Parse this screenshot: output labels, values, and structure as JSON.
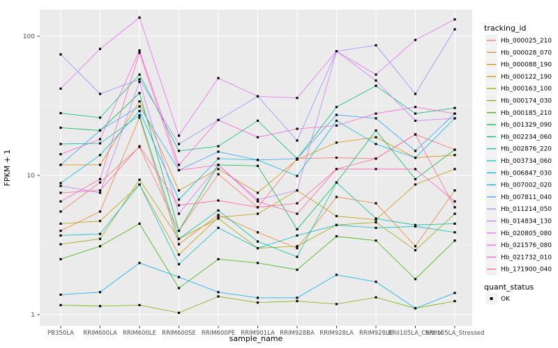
{
  "chart": {
    "xlabel": "sample_name",
    "ylabel": "FPKM + 1",
    "legend_title": "tracking_id",
    "quant_legend": {
      "title": "quant_status",
      "items": [
        {
          "label": "OK",
          "marker": "black-square"
        }
      ]
    },
    "colors": {
      "panel_bg": "#EBEBEB",
      "grid": "#FFFFFF",
      "axis_text": "#4D4D4D",
      "tick_mark": "#333333",
      "point": "#000000",
      "legend_key_bg": "#F2F2F2"
    }
  },
  "chart_data": {
    "type": "line",
    "title": "",
    "xlabel": "sample_name",
    "ylabel": "FPKM + 1",
    "y_scale": "log10",
    "ylim": [
      0.83,
      155
    ],
    "y_ticks": [
      1,
      10,
      100
    ],
    "y_minor_ticks": [
      3.162,
      31.623
    ],
    "grid": "on",
    "legend_position": "right",
    "point_marker": "filled-square",
    "quant_status_all": "OK",
    "x_categories": [
      "PB350LA",
      "RRIM600LA",
      "RRIM600LE",
      "RRIM600SE",
      "RRIM600PE",
      "RRIM901LA",
      "RRIM928BA",
      "RRIM928LA",
      "RRIM928LE",
      "RRII105LA_Control",
      "RRII105LA_Stressed"
    ],
    "series": [
      {
        "name": "Hb_000025_210",
        "color": "#F8766D",
        "values": [
          5.5,
          8.9,
          16.0,
          4.0,
          10.2,
          5.9,
          13.2,
          13.4,
          13.2,
          19.7,
          15.3
        ]
      },
      {
        "name": "Hb_000028_070",
        "color": "#EA8331",
        "values": [
          4.0,
          5.5,
          26.0,
          3.2,
          5.2,
          3.9,
          3.0,
          7.0,
          6.3,
          3.1,
          7.8
        ]
      },
      {
        "name": "Hb_000088_190",
        "color": "#D89000",
        "values": [
          11.9,
          11.9,
          34.0,
          7.8,
          11.1,
          7.5,
          13.0,
          17.2,
          18.8,
          13.4,
          14.0
        ]
      },
      {
        "name": "Hb_000122_190",
        "color": "#C09B00",
        "values": [
          4.5,
          4.7,
          8.6,
          2.7,
          5.0,
          5.3,
          7.8,
          5.1,
          4.8,
          8.6,
          11.1
        ]
      },
      {
        "name": "Hb_000163_100",
        "color": "#A3A500",
        "values": [
          3.2,
          3.5,
          9.3,
          3.5,
          4.9,
          3.0,
          3.1,
          4.4,
          4.6,
          2.9,
          5.3
        ]
      },
      {
        "name": "Hb_000174_030",
        "color": "#7CAE00",
        "values": [
          1.17,
          1.15,
          1.17,
          1.03,
          1.35,
          1.22,
          1.25,
          1.19,
          1.33,
          1.11,
          1.25
        ]
      },
      {
        "name": "Hb_000185_210",
        "color": "#39B600",
        "values": [
          2.5,
          3.1,
          4.5,
          1.55,
          2.5,
          2.35,
          2.1,
          3.65,
          3.4,
          1.8,
          3.4
        ]
      },
      {
        "name": "Hb_001329_090",
        "color": "#00BB4E",
        "values": [
          22.0,
          21.0,
          39.0,
          4.0,
          11.9,
          11.7,
          4.1,
          8.9,
          21.0,
          9.4,
          15.3
        ]
      },
      {
        "name": "Hb_002234_060",
        "color": "#00BF7D",
        "values": [
          28.0,
          26.0,
          53.0,
          15.0,
          16.2,
          24.7,
          13.2,
          31.0,
          44.0,
          27.8,
          30.5
        ]
      },
      {
        "name": "Hb_002876_220",
        "color": "#00C1A3",
        "values": [
          16.8,
          17.0,
          27.0,
          3.5,
          5.6,
          3.35,
          2.6,
          8.9,
          4.9,
          4.4,
          4.5
        ]
      },
      {
        "name": "Hb_003734_060",
        "color": "#00BFC4",
        "values": [
          3.7,
          3.8,
          8.6,
          2.3,
          4.2,
          3.0,
          3.7,
          4.4,
          4.2,
          4.3,
          3.9
        ]
      },
      {
        "name": "Hb_006847_030",
        "color": "#00BAE0",
        "values": [
          8.8,
          14.0,
          29.0,
          6.7,
          13.2,
          12.9,
          9.9,
          24.7,
          16.8,
          13.4,
          25.7
        ]
      },
      {
        "name": "Hb_007002_020",
        "color": "#00B0F6",
        "values": [
          1.39,
          1.45,
          2.35,
          1.86,
          1.45,
          1.32,
          1.32,
          1.93,
          1.72,
          1.11,
          1.43
        ]
      },
      {
        "name": "Hb_007811_040",
        "color": "#35A2FF",
        "values": [
          11.9,
          21.1,
          31.3,
          10.9,
          14.8,
          12.9,
          13.2,
          27.2,
          25.7,
          15.0,
          27.8
        ]
      },
      {
        "name": "Hb_011214_050",
        "color": "#9590FF",
        "values": [
          74.0,
          38.5,
          49.0,
          16.8,
          25.0,
          37.0,
          17.8,
          78.0,
          86.0,
          38.5,
          112.0
        ]
      },
      {
        "name": "Hb_014834_130",
        "color": "#C77CFF",
        "values": [
          8.4,
          7.5,
          47.0,
          5.3,
          11.9,
          6.7,
          7.8,
          78.0,
          48.0,
          24.7,
          25.7
        ]
      },
      {
        "name": "Hb_020805_080",
        "color": "#E76BF3",
        "values": [
          42.0,
          81.0,
          136.0,
          19.3,
          50.0,
          37.0,
          36.0,
          78.0,
          53.0,
          94.0,
          132.0
        ]
      },
      {
        "name": "Hb_021576_080",
        "color": "#FA62DB",
        "values": [
          14.2,
          18.2,
          79.0,
          11.9,
          25.0,
          18.8,
          21.6,
          22.8,
          27.8,
          31.0,
          27.8
        ]
      },
      {
        "name": "Hb_021732_010",
        "color": "#FF62BC",
        "values": [
          6.5,
          9.4,
          76.0,
          10.9,
          11.9,
          6.5,
          5.3,
          11.1,
          11.1,
          11.1,
          6.5
        ]
      },
      {
        "name": "Hb_171900_040",
        "color": "#FF6598",
        "values": [
          7.5,
          7.8,
          16.2,
          6.1,
          6.6,
          5.9,
          6.3,
          11.1,
          13.2,
          19.7,
          5.9
        ]
      }
    ]
  }
}
